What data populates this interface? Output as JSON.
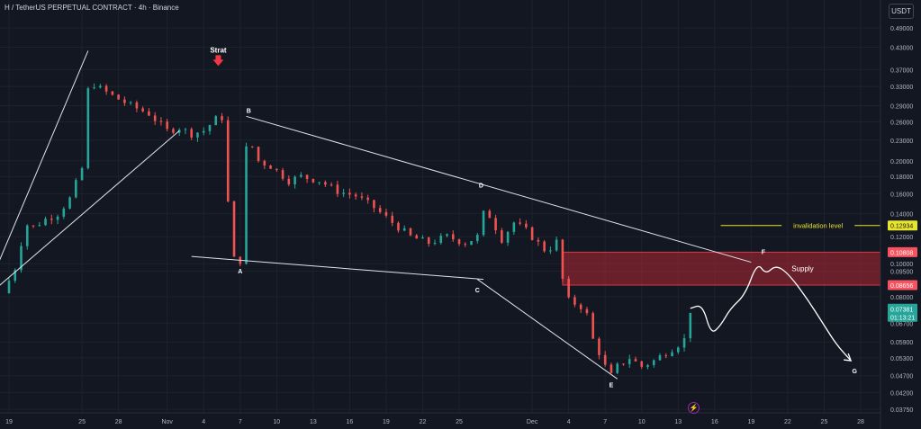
{
  "header": {
    "title": "H / TetherUS PERPETUAL CONTRACT · 4h · Binance",
    "currency_button": "USDT"
  },
  "chart_data": {
    "type": "candlestick",
    "symbol": "H / TetherUS PERPETUAL CONTRACT",
    "timeframe": "4h",
    "exchange": "Binance",
    "y_axis": {
      "scale": "log",
      "ticks": [
        "0.49000",
        "0.43000",
        "0.37000",
        "0.33000",
        "0.29000",
        "0.26000",
        "0.23000",
        "0.20000",
        "0.18000",
        "0.16000",
        "0.14000",
        "0.12000",
        "0.10000",
        "0.09500",
        "0.08000",
        "0.06700",
        "0.05900",
        "0.05300",
        "0.04700",
        "0.04200",
        "0.03750"
      ],
      "tick_values": [
        0.49,
        0.43,
        0.37,
        0.33,
        0.29,
        0.26,
        0.23,
        0.2,
        0.18,
        0.16,
        0.14,
        0.12,
        0.1,
        0.095,
        0.08,
        0.067,
        0.059,
        0.053,
        0.047,
        0.042,
        0.0375
      ]
    },
    "x_axis": {
      "ticks": [
        "19",
        "25",
        "28",
        "Nov",
        "4",
        "7",
        "10",
        "13",
        "16",
        "19",
        "22",
        "25",
        "Dec",
        "4",
        "7",
        "10",
        "13",
        "16",
        "19",
        "22",
        "25",
        "28"
      ],
      "tick_day_index": [
        0,
        6,
        9,
        13,
        16,
        19,
        22,
        25,
        28,
        31,
        34,
        37,
        43,
        46,
        49,
        52,
        55,
        58,
        61,
        64,
        67,
        70
      ]
    },
    "price_path": [
      [
        -0.5,
        0.082
      ],
      [
        0.5,
        0.097
      ],
      [
        1,
        0.115
      ],
      [
        1.5,
        0.13
      ],
      [
        2,
        0.128
      ],
      [
        3,
        0.135
      ],
      [
        4,
        0.14
      ],
      [
        5,
        0.155
      ],
      [
        6,
        0.19
      ],
      [
        6.3,
        0.31
      ],
      [
        6.8,
        0.34
      ],
      [
        7.2,
        0.33
      ],
      [
        8.5,
        0.31
      ],
      [
        10,
        0.29
      ],
      [
        11.5,
        0.275
      ],
      [
        13,
        0.245
      ],
      [
        14,
        0.25
      ],
      [
        15,
        0.24
      ],
      [
        16,
        0.245
      ],
      [
        17,
        0.265
      ],
      [
        17.2,
        0.37
      ],
      [
        17.4,
        0.3
      ],
      [
        17.8,
        0.19
      ],
      [
        18.2,
        0.12
      ],
      [
        18.6,
        0.098
      ],
      [
        19,
        0.102
      ],
      [
        19.4,
        0.2
      ],
      [
        19.7,
        0.255
      ],
      [
        20,
        0.22
      ],
      [
        20.5,
        0.2
      ],
      [
        21.5,
        0.193
      ],
      [
        23,
        0.175
      ],
      [
        24,
        0.18
      ],
      [
        25.5,
        0.175
      ],
      [
        27,
        0.163
      ],
      [
        28.5,
        0.158
      ],
      [
        30,
        0.146
      ],
      [
        31.5,
        0.132
      ],
      [
        33,
        0.12
      ],
      [
        34.5,
        0.115
      ],
      [
        36,
        0.12
      ],
      [
        37.5,
        0.115
      ],
      [
        38.5,
        0.12
      ],
      [
        38.8,
        0.16
      ],
      [
        39,
        0.14
      ],
      [
        39.5,
        0.138
      ],
      [
        40.5,
        0.118
      ],
      [
        41.5,
        0.132
      ],
      [
        42.5,
        0.125
      ],
      [
        44,
        0.11
      ],
      [
        44.8,
        0.112
      ],
      [
        45.2,
        0.12
      ],
      [
        45.5,
        0.09
      ],
      [
        46,
        0.078
      ],
      [
        47,
        0.075
      ],
      [
        47.6,
        0.07
      ],
      [
        48,
        0.06
      ],
      [
        48.5,
        0.055
      ],
      [
        49,
        0.05
      ],
      [
        49.5,
        0.047
      ],
      [
        50,
        0.05
      ],
      [
        51,
        0.053
      ],
      [
        52,
        0.05
      ],
      [
        53,
        0.052
      ],
      [
        54,
        0.055
      ],
      [
        55,
        0.058
      ],
      [
        55.5,
        0.06
      ],
      [
        56,
        0.073
      ]
    ],
    "projection_path": [
      [
        56,
        0.074
      ],
      [
        57,
        0.076
      ],
      [
        57.7,
        0.062
      ],
      [
        58.5,
        0.066
      ],
      [
        59.3,
        0.074
      ],
      [
        60.5,
        0.081
      ],
      [
        61.5,
        0.101
      ],
      [
        62.2,
        0.093
      ],
      [
        63,
        0.099
      ],
      [
        64,
        0.094
      ],
      [
        65.5,
        0.08
      ],
      [
        67,
        0.066
      ],
      [
        68,
        0.058
      ],
      [
        69.2,
        0.052
      ]
    ],
    "trendlines": [
      {
        "name": "upper-left",
        "from": [
          -1,
          0.098
        ],
        "to": [
          6.5,
          0.42
        ]
      },
      {
        "name": "lower-left",
        "from": [
          -1,
          0.085
        ],
        "to": [
          14,
          0.245
        ]
      },
      {
        "name": "wedge-top",
        "from": [
          19.5,
          0.27
        ],
        "to": [
          61,
          0.101
        ]
      },
      {
        "name": "wedge-bottom",
        "from": [
          15,
          0.105
        ],
        "to": [
          39,
          0.09
        ]
      },
      {
        "name": "lower-right",
        "from": [
          38.5,
          0.09
        ],
        "to": [
          50,
          0.046
        ]
      }
    ],
    "wave_labels": [
      {
        "label": "A",
        "x": 19,
        "y": 0.099
      },
      {
        "label": "B",
        "x": 19.7,
        "y": 0.27
      },
      {
        "label": "C",
        "x": 38.5,
        "y": 0.087
      },
      {
        "label": "D",
        "x": 38.8,
        "y": 0.163
      },
      {
        "label": "E",
        "x": 49.5,
        "y": 0.046
      },
      {
        "label": "F",
        "x": 62,
        "y": 0.104
      },
      {
        "label": "G",
        "x": 69.5,
        "y": 0.0505
      }
    ],
    "annotations": {
      "strat_label": "Strat",
      "strat_x": 17.2,
      "strat_y": 0.37,
      "invalidation_label": "invalidation level",
      "invalidation_value": "0.12934",
      "invalidation_y": 0.12934,
      "supply_label": "Supply",
      "supply_top_value": "0.10808",
      "supply_top": 0.10808,
      "supply_bottom_value": "0.08656",
      "supply_bottom": 0.08656,
      "supply_start_x": 45.5,
      "current_price": "0.07381",
      "current_y": 0.07381,
      "countdown": "01:13:21"
    },
    "colors": {
      "background": "#131722",
      "up": "#26a69a",
      "down": "#ef5350",
      "trendline": "#e0e3eb",
      "invalidation": "#e8e52a",
      "supply": "#b22833",
      "strat_arrow": "#f23645",
      "text": "#d1d4dc",
      "axis_text": "#b2b5be"
    }
  }
}
